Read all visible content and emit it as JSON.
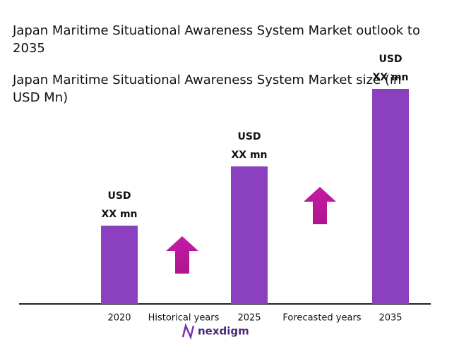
{
  "chart_data": {
    "type": "bar",
    "title": "Japan Maritime Situational Awareness System Market outlook to 2035",
    "subtitle": "Japan Maritime Situational Awareness System Market size (in USD Mn)",
    "categories": [
      "2020",
      "2025",
      "2035"
    ],
    "values": [
      111,
      195,
      305
    ],
    "value_labels": [
      "USD XX mn",
      "USD XX mn",
      "USD XX mn"
    ],
    "color": "#8a40bf",
    "ylim": [
      0,
      320
    ],
    "annotations": [
      "Historical years",
      "Forecasted years"
    ]
  },
  "brand": "nexdigm"
}
